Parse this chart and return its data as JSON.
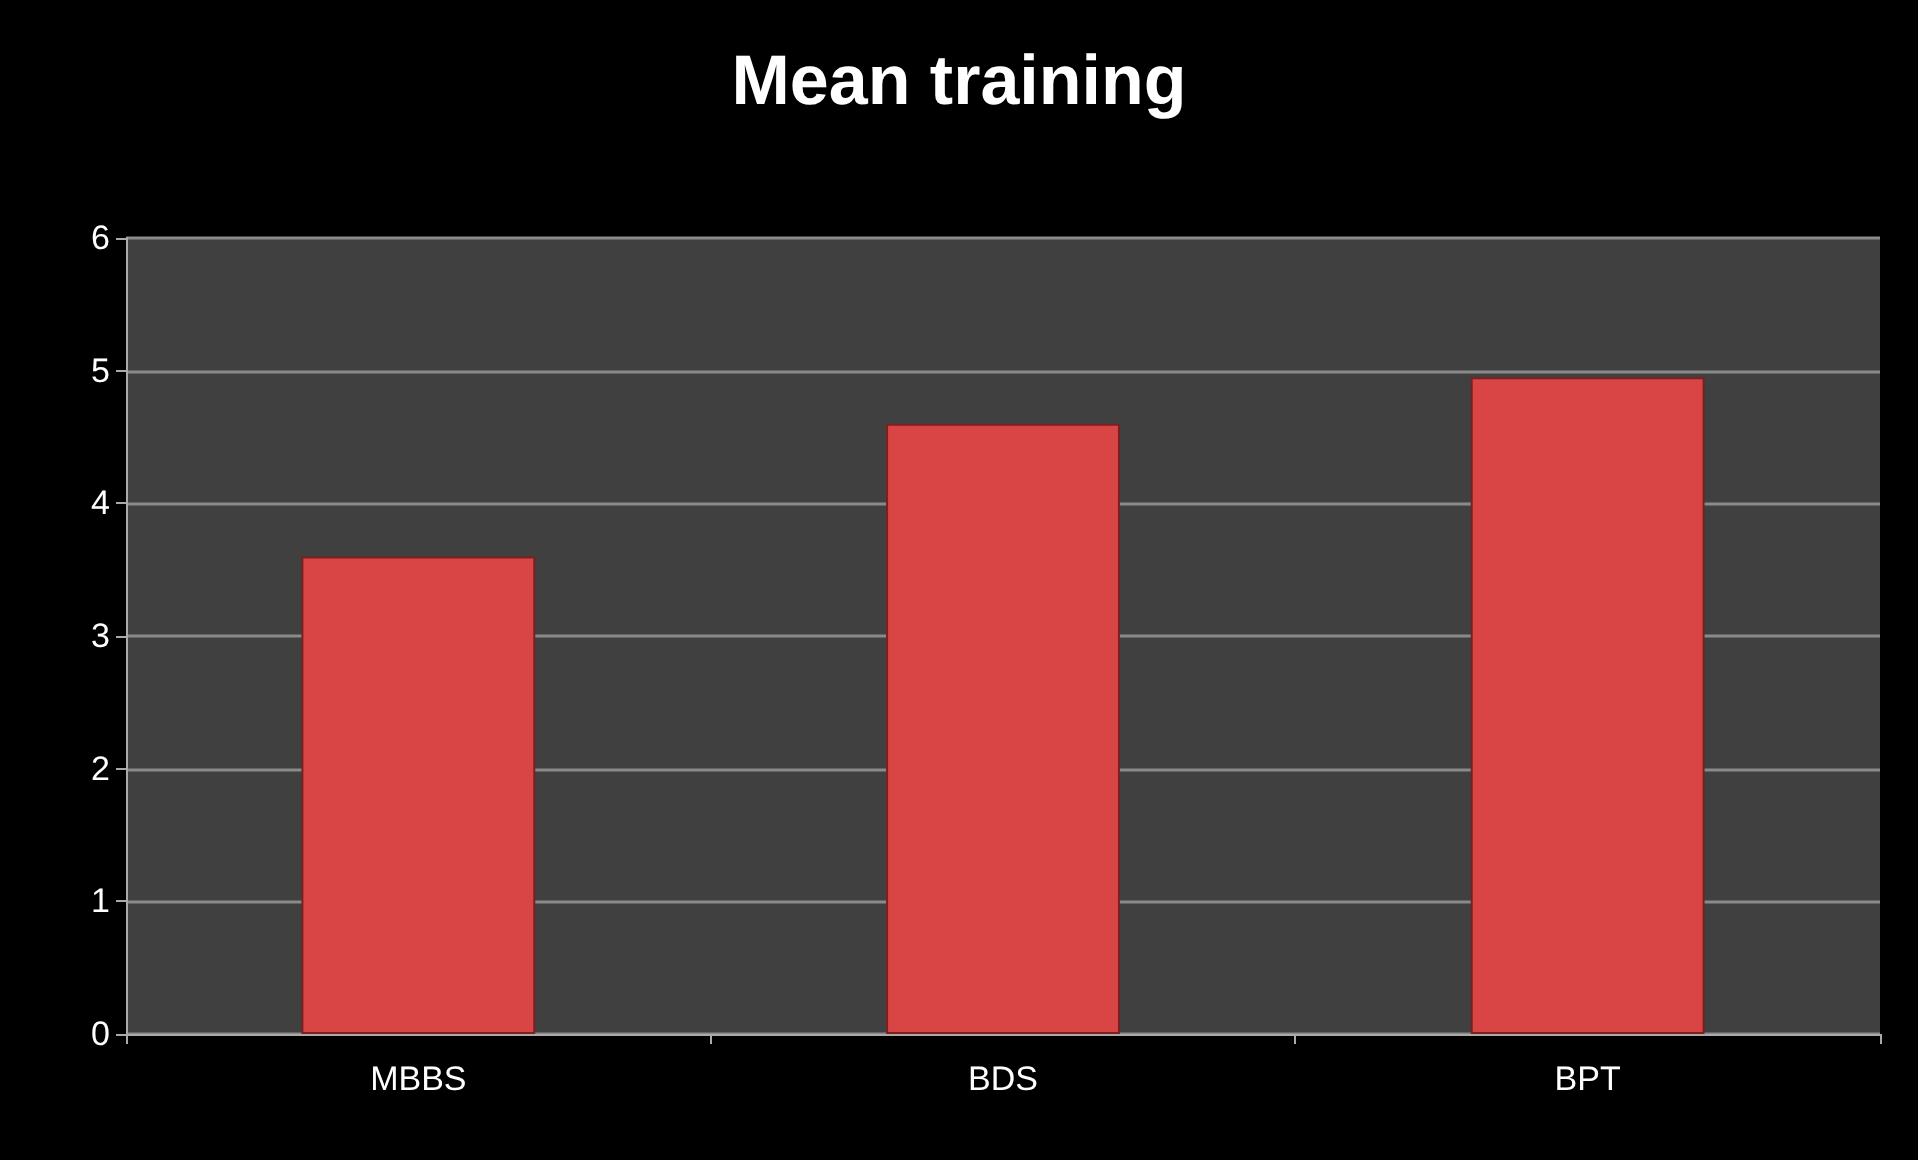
{
  "chart_data": {
    "type": "bar",
    "title": "Mean training",
    "categories": [
      "MBBS",
      "BDS",
      "BPT"
    ],
    "values": [
      3.6,
      4.6,
      4.95
    ],
    "color": "#d94545",
    "ylim": [
      0,
      6
    ],
    "yticks": [
      0,
      1,
      2,
      3,
      4,
      5,
      6
    ],
    "grid": "y"
  }
}
